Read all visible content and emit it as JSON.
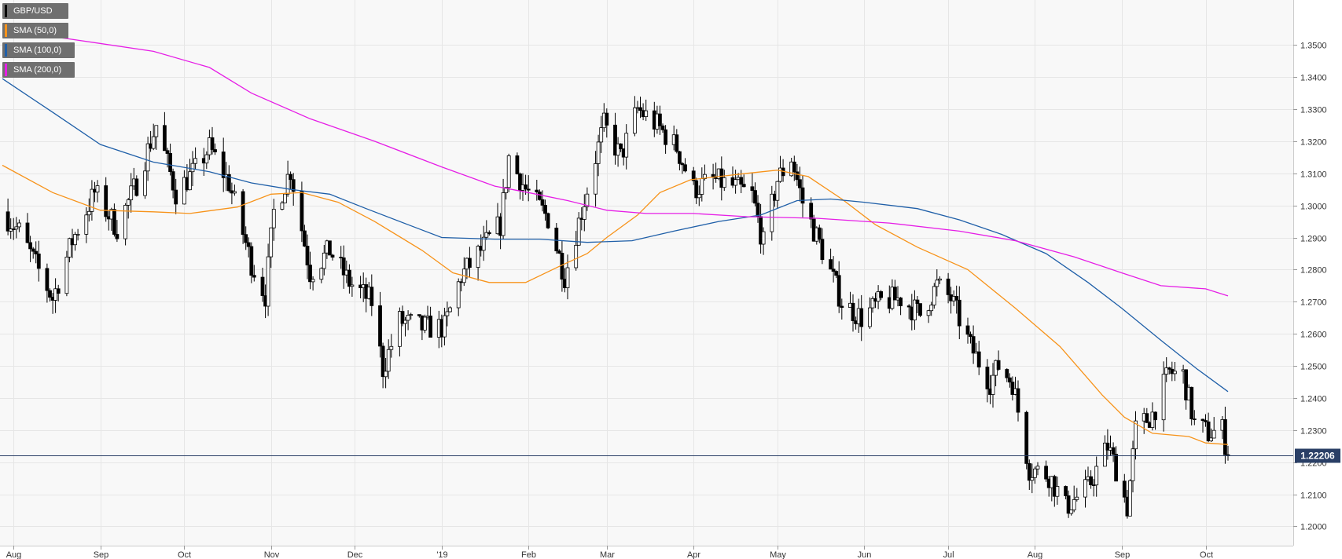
{
  "chart_data": {
    "type": "candlestick",
    "title": "",
    "instrument": "GBP/USD",
    "xlabel": "",
    "ylabel": "",
    "ylim": [
      1.194,
      1.364
    ],
    "grid": true,
    "legend_placement": "top-left",
    "y_ticks": [
      "1.2000",
      "1.2100",
      "1.2200",
      "1.2300",
      "1.2400",
      "1.2500",
      "1.2600",
      "1.2700",
      "1.2800",
      "1.2900",
      "1.3000",
      "1.3100",
      "1.3200",
      "1.3300",
      "1.3400",
      "1.3500"
    ],
    "x_month_labels": [
      {
        "label": "Aug",
        "date": "2018-08-01"
      },
      {
        "label": "Sep",
        "date": "2018-09-01"
      },
      {
        "label": "Oct",
        "date": "2018-10-01"
      },
      {
        "label": "Nov",
        "date": "2018-11-01"
      },
      {
        "label": "Dec",
        "date": "2018-12-01"
      },
      {
        "label": "'19",
        "date": "2019-01-01"
      },
      {
        "label": "Feb",
        "date": "2019-02-01"
      },
      {
        "label": "Mar",
        "date": "2019-03-01"
      },
      {
        "label": "Apr",
        "date": "2019-04-01"
      },
      {
        "label": "May",
        "date": "2019-05-01"
      },
      {
        "label": "Jun",
        "date": "2019-06-01"
      },
      {
        "label": "Jul",
        "date": "2019-07-01"
      },
      {
        "label": "Aug",
        "date": "2019-08-01"
      },
      {
        "label": "Sep",
        "date": "2019-09-01"
      },
      {
        "label": "Oct",
        "date": "2019-10-01"
      }
    ],
    "last_price": {
      "label": "1.22206",
      "value": 1.22206
    },
    "series": [
      {
        "name": "GBP/USD",
        "color": "#000000",
        "type": "candlestick",
        "date_range": [
          "2018-07-28",
          "2019-10-09"
        ]
      },
      {
        "name": "SMA (50,0)",
        "color": "#f7931a",
        "type": "line",
        "points": [
          [
            "2018-07-28",
            1.3125
          ],
          [
            "2018-08-15",
            1.304
          ],
          [
            "2018-09-01",
            1.2985
          ],
          [
            "2018-09-20",
            1.298
          ],
          [
            "2018-10-03",
            1.2975
          ],
          [
            "2018-10-20",
            1.2995
          ],
          [
            "2018-11-01",
            1.3035
          ],
          [
            "2018-11-12",
            1.304
          ],
          [
            "2018-11-25",
            1.301
          ],
          [
            "2018-12-08",
            1.295
          ],
          [
            "2018-12-25",
            1.286
          ],
          [
            "2019-01-05",
            1.279
          ],
          [
            "2019-01-18",
            1.276
          ],
          [
            "2019-01-31",
            1.276
          ],
          [
            "2019-02-12",
            1.281
          ],
          [
            "2019-02-22",
            1.285
          ],
          [
            "2019-03-01",
            1.29
          ],
          [
            "2019-03-12",
            1.297
          ],
          [
            "2019-03-20",
            1.304
          ],
          [
            "2019-03-31",
            1.308
          ],
          [
            "2019-04-10",
            1.309
          ],
          [
            "2019-04-20",
            1.31
          ],
          [
            "2019-05-01",
            1.311
          ],
          [
            "2019-05-12",
            1.309
          ],
          [
            "2019-05-24",
            1.302
          ],
          [
            "2019-06-05",
            1.294
          ],
          [
            "2019-06-20",
            1.287
          ],
          [
            "2019-07-08",
            1.28
          ],
          [
            "2019-07-25",
            1.268
          ],
          [
            "2019-08-10",
            1.256
          ],
          [
            "2019-08-25",
            1.241
          ],
          [
            "2019-09-02",
            1.234
          ],
          [
            "2019-09-12",
            1.229
          ],
          [
            "2019-09-25",
            1.228
          ],
          [
            "2019-10-01",
            1.226
          ],
          [
            "2019-10-09",
            1.2255
          ]
        ]
      },
      {
        "name": "SMA (100,0)",
        "color": "#1f5fa8",
        "type": "line",
        "points": [
          [
            "2018-07-28",
            1.3395
          ],
          [
            "2018-08-15",
            1.329
          ],
          [
            "2018-09-01",
            1.319
          ],
          [
            "2018-09-20",
            1.3135
          ],
          [
            "2018-10-10",
            1.3105
          ],
          [
            "2018-10-25",
            1.307
          ],
          [
            "2018-11-08",
            1.305
          ],
          [
            "2018-11-22",
            1.3035
          ],
          [
            "2018-12-05",
            1.299
          ],
          [
            "2018-12-20",
            1.294
          ],
          [
            "2019-01-01",
            1.29
          ],
          [
            "2019-01-20",
            1.2895
          ],
          [
            "2019-02-05",
            1.2895
          ],
          [
            "2019-02-22",
            1.2885
          ],
          [
            "2019-03-10",
            1.289
          ],
          [
            "2019-03-25",
            1.292
          ],
          [
            "2019-04-10",
            1.295
          ],
          [
            "2019-04-25",
            1.297
          ],
          [
            "2019-05-08",
            1.3015
          ],
          [
            "2019-05-20",
            1.302
          ],
          [
            "2019-06-01",
            1.301
          ],
          [
            "2019-06-20",
            1.299
          ],
          [
            "2019-07-05",
            1.2955
          ],
          [
            "2019-07-20",
            1.291
          ],
          [
            "2019-08-05",
            1.285
          ],
          [
            "2019-08-20",
            1.276
          ],
          [
            "2019-09-01",
            1.268
          ],
          [
            "2019-09-15",
            1.258
          ],
          [
            "2019-09-28",
            1.249
          ],
          [
            "2019-10-09",
            1.242
          ]
        ]
      },
      {
        "name": "SMA (200,0)",
        "color": "#e61ee6",
        "type": "line",
        "points": [
          [
            "2018-07-28",
            1.3545
          ],
          [
            "2018-08-20",
            1.352
          ],
          [
            "2018-09-20",
            1.348
          ],
          [
            "2018-10-10",
            1.343
          ],
          [
            "2018-10-25",
            1.335
          ],
          [
            "2018-11-15",
            1.327
          ],
          [
            "2018-12-08",
            1.32
          ],
          [
            "2019-01-01",
            1.312
          ],
          [
            "2019-01-20",
            1.306
          ],
          [
            "2019-02-01",
            1.304
          ],
          [
            "2019-02-15",
            1.3015
          ],
          [
            "2019-03-01",
            1.2985
          ],
          [
            "2019-03-15",
            1.2975
          ],
          [
            "2019-04-01",
            1.2975
          ],
          [
            "2019-04-20",
            1.2965
          ],
          [
            "2019-05-15",
            1.296
          ],
          [
            "2019-06-10",
            1.2945
          ],
          [
            "2019-07-05",
            1.292
          ],
          [
            "2019-07-25",
            1.289
          ],
          [
            "2019-08-15",
            1.284
          ],
          [
            "2019-09-01",
            1.279
          ],
          [
            "2019-09-15",
            1.275
          ],
          [
            "2019-10-01",
            1.274
          ],
          [
            "2019-10-09",
            1.2718
          ]
        ]
      }
    ]
  }
}
